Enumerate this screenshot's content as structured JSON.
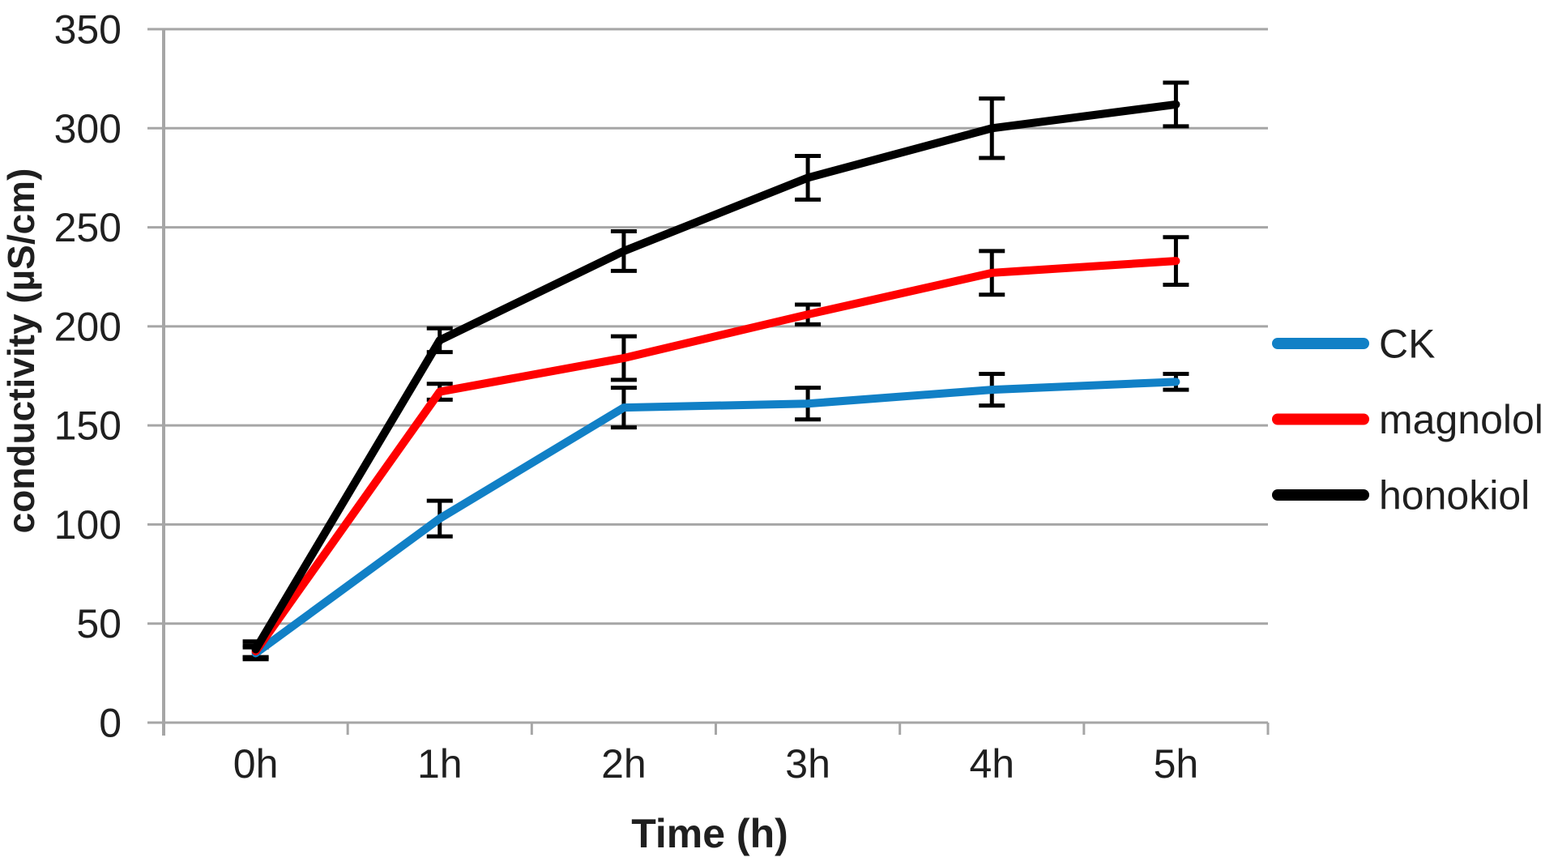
{
  "chart_data": {
    "type": "line",
    "title": "",
    "xlabel": "Time (h)",
    "ylabel": "conductivity (µS/cm)",
    "categories": [
      "0h",
      "1h",
      "2h",
      "3h",
      "4h",
      "5h"
    ],
    "y_ticks": [
      0,
      50,
      100,
      150,
      200,
      250,
      300,
      350
    ],
    "ylim": [
      0,
      350
    ],
    "grid": true,
    "legend_position": "right",
    "series": [
      {
        "name": "CK",
        "color": "#1180C6",
        "values": [
          35,
          103,
          159,
          161,
          168,
          172
        ],
        "errors": [
          3,
          9,
          10,
          8,
          8,
          4
        ]
      },
      {
        "name": "magnolol",
        "color": "#FF0000",
        "values": [
          36,
          167,
          184,
          206,
          227,
          233
        ],
        "errors": [
          3,
          4,
          11,
          5,
          11,
          12
        ]
      },
      {
        "name": "honokiol",
        "color": "#000000",
        "values": [
          37,
          193,
          238,
          275,
          300,
          312
        ],
        "errors": [
          4,
          6,
          10,
          11,
          15,
          11
        ]
      }
    ],
    "error_bar_color": "#000000",
    "grid_color": "#A6A6A6",
    "axis_color": "#A6A6A6",
    "text_color": "#1F1F1F"
  }
}
